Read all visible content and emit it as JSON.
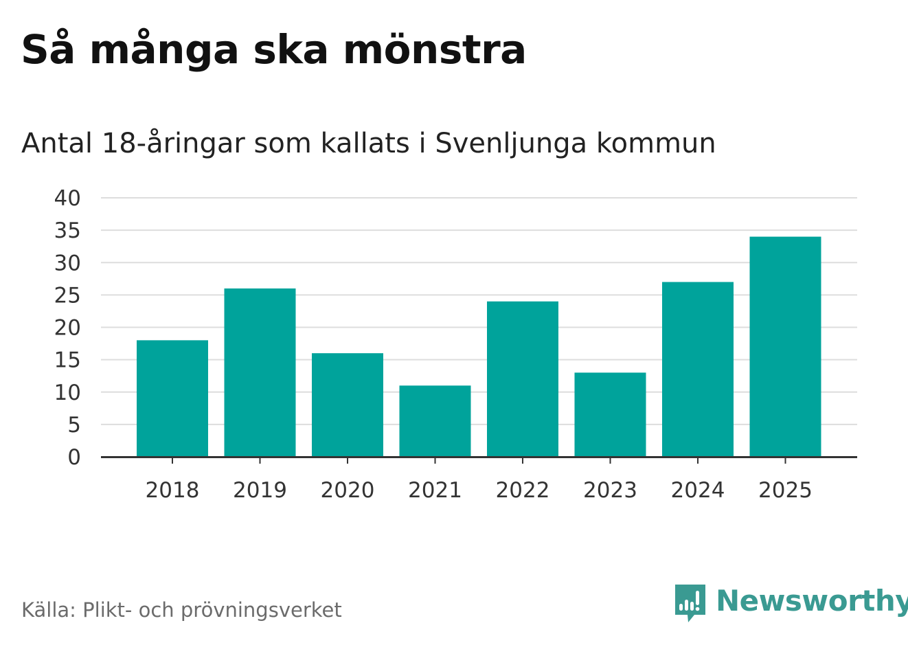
{
  "header": {
    "title": "Så många ska mönstra",
    "subtitle": "Antal 18-åringar som kallats i Svenljunga kommun"
  },
  "footer": {
    "source": "Källa: Plikt- och prövningsverket",
    "brand": "Newsworthy",
    "brand_icon": "bar-chart-speech-bubble-icon"
  },
  "colors": {
    "bar": "#00a39b",
    "grid": "#dddddd",
    "axis": "#333333",
    "logo": "#3a9a92"
  },
  "chart_data": {
    "type": "bar",
    "title": "Så många ska mönstra",
    "subtitle": "Antal 18-åringar som kallats i Svenljunga kommun",
    "xlabel": "",
    "ylabel": "",
    "categories": [
      "2018",
      "2019",
      "2020",
      "2021",
      "2022",
      "2023",
      "2024",
      "2025"
    ],
    "values": [
      18,
      26,
      16,
      11,
      24,
      13,
      27,
      34
    ],
    "ylim": [
      0,
      40
    ],
    "yticks": [
      0,
      5,
      10,
      15,
      20,
      25,
      30,
      35,
      40
    ],
    "grid": true,
    "legend": "none"
  }
}
